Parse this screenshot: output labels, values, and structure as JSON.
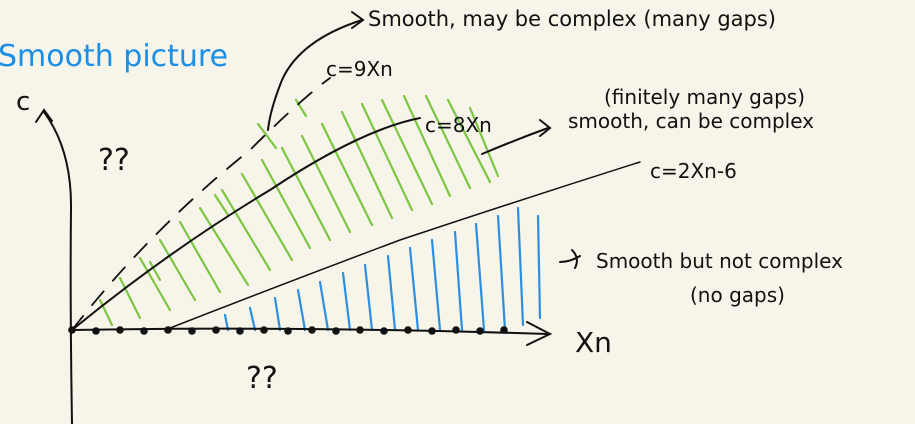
{
  "title": "Smooth picture",
  "axes": {
    "y_label": "c",
    "x_label": "Xn"
  },
  "lines": {
    "c9": "c=9Xn",
    "c8": "c=8Xn",
    "c2": "c=2Xn-6"
  },
  "annotations": {
    "top": "Smooth, may be complex (many gaps)",
    "middle_1": "(finitely many gaps)",
    "middle_2": "smooth, can be complex",
    "bottom_1": "Smooth but not complex",
    "bottom_2": "(no gaps)",
    "unknown_upper": "??",
    "unknown_lower": "??"
  },
  "colors": {
    "background": "#f7f4e9",
    "ink": "#111111",
    "title": "#1b8fe6",
    "green_hatch": "#7cc642",
    "blue_hatch": "#2a8fe0"
  }
}
